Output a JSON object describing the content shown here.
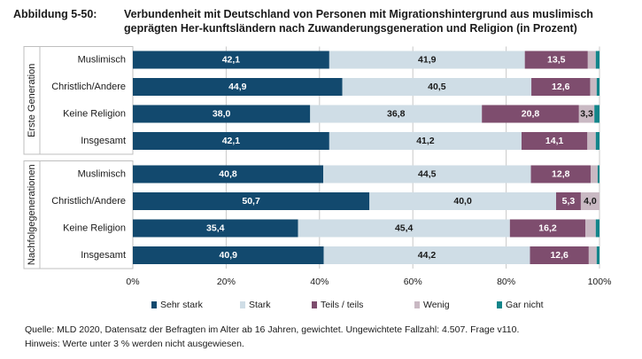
{
  "header": {
    "label": "Abbildung 5-50:",
    "title": "Verbundenheit mit Deutschland von Personen mit Migrationshintergrund aus muslimisch geprägten Her-kunftsländern nach Zuwanderungsgeneration und Religion (in Prozent)"
  },
  "chart_data": {
    "type": "stacked-bar-horizontal",
    "xlim": [
      0,
      100
    ],
    "x_ticks": [
      "0%",
      "20%",
      "40%",
      "60%",
      "80%",
      "100%"
    ],
    "groups": [
      {
        "name": "Erste Generation",
        "rows": [
          {
            "label": "Muslimisch",
            "values": [
              42.1,
              41.9,
              13.5,
              1.7,
              0.8
            ],
            "labels": [
              "42,1",
              "41,9",
              "13,5",
              "",
              ""
            ]
          },
          {
            "label": "Christlich/Andere",
            "values": [
              44.9,
              40.5,
              12.6,
              1.4,
              0.6
            ],
            "labels": [
              "44,9",
              "40,5",
              "12,6",
              "",
              ""
            ]
          },
          {
            "label": "Keine Religion",
            "values": [
              38.0,
              36.8,
              20.8,
              3.3,
              1.1
            ],
            "labels": [
              "38,0",
              "36,8",
              "20,8",
              "3,3",
              ""
            ]
          },
          {
            "label": "Insgesamt",
            "values": [
              42.1,
              41.2,
              14.1,
              1.8,
              0.8
            ],
            "labels": [
              "42,1",
              "41,2",
              "14,1",
              "",
              ""
            ]
          }
        ]
      },
      {
        "name": "Nachfolgegenerationen",
        "rows": [
          {
            "label": "Muslimisch",
            "values": [
              40.8,
              44.5,
              12.8,
              1.5,
              0.4
            ],
            "labels": [
              "40,8",
              "44,5",
              "12,8",
              "",
              ""
            ]
          },
          {
            "label": "Christlich/Andere",
            "values": [
              50.7,
              40.0,
              5.3,
              4.0,
              0.0
            ],
            "labels": [
              "50,7",
              "40,0",
              "5,3",
              "4,0",
              ""
            ]
          },
          {
            "label": "Keine Religion",
            "values": [
              35.4,
              45.4,
              16.2,
              2.2,
              0.8
            ],
            "labels": [
              "35,4",
              "45,4",
              "16,2",
              "",
              ""
            ]
          },
          {
            "label": "Insgesamt",
            "values": [
              40.9,
              44.2,
              12.6,
              1.7,
              0.6
            ],
            "labels": [
              "40,9",
              "44,2",
              "12,6",
              "",
              ""
            ]
          }
        ]
      }
    ],
    "series": [
      {
        "name": "Sehr stark",
        "color": "#12496e",
        "text_color": "#ffffff"
      },
      {
        "name": "Stark",
        "color": "#cfdde6",
        "text_color": "#1a1a1a"
      },
      {
        "name": "Teils / teils",
        "color": "#7e4d6e",
        "text_color": "#ffffff"
      },
      {
        "name": "Wenig",
        "color": "#c9b9c3",
        "text_color": "#1a1a1a"
      },
      {
        "name": "Gar nicht",
        "color": "#13858a",
        "text_color": "#ffffff"
      }
    ]
  },
  "footer": {
    "source": "Quelle: MLD 2020, Datensatz der Befragten im Alter ab 16 Jahren, gewichtet. Ungewichtete Fallzahl: 4.507. Frage v110.",
    "note": "Hinweis: Werte unter 3 % werden nicht ausgewiesen."
  }
}
